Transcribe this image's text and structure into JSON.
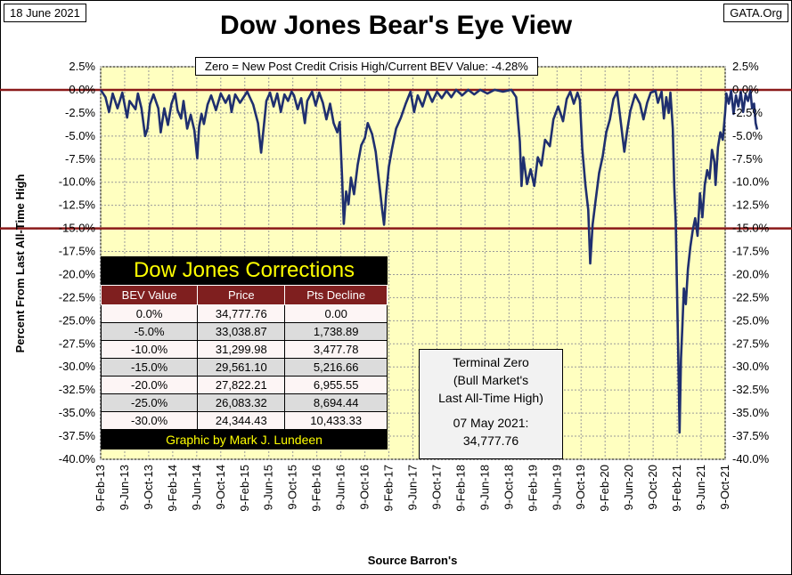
{
  "header": {
    "date": "18 June 2021",
    "site": "GATA.Org",
    "title": "Dow Jones Bear's Eye View"
  },
  "annotation": {
    "zero_note": "Zero = New Post Credit Crisis High/Current  BEV Value:  -4.28%"
  },
  "chart_data": {
    "type": "line",
    "title": "Dow Jones Bear's Eye View",
    "ylabel": "Percent From Last All-Time High",
    "xlabel": "Source Barron's",
    "ylim": [
      -40,
      2.5
    ],
    "y_ticks": [
      "2.5%",
      "0.0%",
      "-2.5%",
      "-5.0%",
      "-7.5%",
      "-10.0%",
      "-12.5%",
      "-15.0%",
      "-17.5%",
      "-20.0%",
      "-22.5%",
      "-25.0%",
      "-27.5%",
      "-30.0%",
      "-32.5%",
      "-35.0%",
      "-37.5%",
      "-40.0%"
    ],
    "x_ticks": [
      "9-Feb-13",
      "9-Jun-13",
      "9-Oct-13",
      "9-Feb-14",
      "9-Jun-14",
      "9-Oct-14",
      "9-Feb-15",
      "9-Jun-15",
      "9-Oct-15",
      "9-Feb-16",
      "9-Jun-16",
      "9-Oct-16",
      "9-Feb-17",
      "9-Jun-17",
      "9-Oct-17",
      "9-Feb-18",
      "9-Jun-18",
      "9-Oct-18",
      "9-Feb-19",
      "9-Jun-19",
      "9-Oct-19",
      "9-Feb-20",
      "9-Jun-20",
      "9-Oct-20",
      "9-Feb-21",
      "9-Jun-21",
      "9-Oct-21"
    ],
    "reference_lines": [
      0,
      -15
    ],
    "series": [
      {
        "name": "BEV",
        "points": [
          [
            0,
            0
          ],
          [
            0.2,
            -0.8
          ],
          [
            0.35,
            -2.4
          ],
          [
            0.5,
            -0.4
          ],
          [
            0.7,
            -2
          ],
          [
            0.9,
            -0.3
          ],
          [
            1.1,
            -3
          ],
          [
            1.2,
            -1.2
          ],
          [
            1.45,
            -2.1
          ],
          [
            1.55,
            -0.4
          ],
          [
            1.7,
            -2
          ],
          [
            1.85,
            -5
          ],
          [
            1.95,
            -4.2
          ],
          [
            2.05,
            -1.6
          ],
          [
            2.2,
            -0.5
          ],
          [
            2.4,
            -2
          ],
          [
            2.5,
            -4.6
          ],
          [
            2.65,
            -2
          ],
          [
            2.8,
            -3.8
          ],
          [
            2.95,
            -1.5
          ],
          [
            3.1,
            -0.4
          ],
          [
            3.2,
            -2.2
          ],
          [
            3.35,
            -3.1
          ],
          [
            3.45,
            -1.2
          ],
          [
            3.6,
            -4.2
          ],
          [
            3.75,
            -2.7
          ],
          [
            3.9,
            -4.4
          ],
          [
            4.02,
            -7.4
          ],
          [
            4.1,
            -4
          ],
          [
            4.2,
            -2.6
          ],
          [
            4.3,
            -3.7
          ],
          [
            4.45,
            -1.6
          ],
          [
            4.6,
            -0.6
          ],
          [
            4.8,
            -2.2
          ],
          [
            5,
            -0.4
          ],
          [
            5.2,
            -1.4
          ],
          [
            5.35,
            -0.6
          ],
          [
            5.45,
            -2.4
          ],
          [
            5.6,
            -0.5
          ],
          [
            5.8,
            -1.4
          ],
          [
            6.1,
            -0.2
          ],
          [
            6.35,
            -1.6
          ],
          [
            6.55,
            -3.6
          ],
          [
            6.68,
            -6.8
          ],
          [
            6.8,
            -3.8
          ],
          [
            6.9,
            -1.2
          ],
          [
            7.05,
            -0.3
          ],
          [
            7.2,
            -1.8
          ],
          [
            7.35,
            -0.4
          ],
          [
            7.5,
            -2.4
          ],
          [
            7.65,
            -0.5
          ],
          [
            7.8,
            -1.2
          ],
          [
            7.95,
            -0.2
          ],
          [
            8.05,
            -0.6
          ],
          [
            8.2,
            -2.1
          ],
          [
            8.35,
            -0.9
          ],
          [
            8.5,
            -3.6
          ],
          [
            8.6,
            -1.2
          ],
          [
            8.8,
            -0.2
          ],
          [
            8.95,
            -1.7
          ],
          [
            9.1,
            -0.3
          ],
          [
            9.25,
            -1.4
          ],
          [
            9.4,
            -3.2
          ],
          [
            9.55,
            -1.5
          ],
          [
            9.7,
            -3.6
          ],
          [
            9.85,
            -4.6
          ],
          [
            9.95,
            -3.5
          ],
          [
            10.05,
            -9.5
          ],
          [
            10.12,
            -14.5
          ],
          [
            10.22,
            -11
          ],
          [
            10.32,
            -12.4
          ],
          [
            10.42,
            -9.5
          ],
          [
            10.55,
            -11.3
          ],
          [
            10.7,
            -8.1
          ],
          [
            10.85,
            -6
          ],
          [
            11,
            -5.2
          ],
          [
            11.12,
            -3.6
          ],
          [
            11.3,
            -4.8
          ],
          [
            11.45,
            -6.7
          ],
          [
            11.6,
            -10.2
          ],
          [
            11.72,
            -13
          ],
          [
            11.8,
            -14.6
          ],
          [
            11.88,
            -11.5
          ],
          [
            12,
            -8.3
          ],
          [
            12.12,
            -6.5
          ],
          [
            12.3,
            -4.2
          ],
          [
            12.5,
            -3
          ],
          [
            12.7,
            -1.5
          ],
          [
            12.9,
            -0.2
          ],
          [
            13.05,
            -2.4
          ],
          [
            13.2,
            -0.6
          ],
          [
            13.4,
            -1.8
          ],
          [
            13.6,
            -0.1
          ],
          [
            13.8,
            -1.3
          ],
          [
            14,
            -0.2
          ],
          [
            14.2,
            -0.9
          ],
          [
            14.4,
            -0.1
          ],
          [
            14.6,
            -0.8
          ],
          [
            14.8,
            0
          ],
          [
            15.05,
            -0.6
          ],
          [
            15.3,
            0
          ],
          [
            15.55,
            -0.5
          ],
          [
            15.8,
            0
          ],
          [
            16.1,
            -0.4
          ],
          [
            16.4,
            0
          ],
          [
            16.75,
            -0.2
          ],
          [
            17.1,
            0
          ],
          [
            17.3,
            -0.8
          ],
          [
            17.45,
            -5.6
          ],
          [
            17.52,
            -10.4
          ],
          [
            17.6,
            -7.3
          ],
          [
            17.75,
            -10.2
          ],
          [
            17.9,
            -8.6
          ],
          [
            18.05,
            -10.4
          ],
          [
            18.2,
            -7.3
          ],
          [
            18.35,
            -8.2
          ],
          [
            18.5,
            -5.4
          ],
          [
            18.7,
            -6.1
          ],
          [
            18.85,
            -3.2
          ],
          [
            19.05,
            -1.8
          ],
          [
            19.25,
            -3.4
          ],
          [
            19.4,
            -1
          ],
          [
            19.55,
            -0.2
          ],
          [
            19.7,
            -1.5
          ],
          [
            19.85,
            -0.3
          ],
          [
            19.95,
            -1.1
          ],
          [
            20.05,
            -6.4
          ],
          [
            20.18,
            -10.3
          ],
          [
            20.3,
            -13
          ],
          [
            20.38,
            -18.8
          ],
          [
            20.48,
            -14.6
          ],
          [
            20.6,
            -12.1
          ],
          [
            20.75,
            -9
          ],
          [
            20.9,
            -7.2
          ],
          [
            21.05,
            -4.6
          ],
          [
            21.2,
            -3.2
          ],
          [
            21.35,
            -1
          ],
          [
            21.5,
            -0.2
          ],
          [
            21.65,
            -3.4
          ],
          [
            21.8,
            -6.7
          ],
          [
            21.92,
            -4.4
          ],
          [
            22.05,
            -2.3
          ],
          [
            22.25,
            -0.5
          ],
          [
            22.45,
            -1.5
          ],
          [
            22.6,
            -3.2
          ],
          [
            22.75,
            -1.4
          ],
          [
            22.9,
            -0.3
          ],
          [
            23.1,
            -0.1
          ],
          [
            23.2,
            -1.4
          ],
          [
            23.35,
            -0.2
          ],
          [
            23.45,
            -3.1
          ],
          [
            23.55,
            -0.8
          ],
          [
            23.65,
            -2.5
          ],
          [
            23.72,
            -0.3
          ],
          [
            23.82,
            -4.2
          ],
          [
            23.88,
            -10.4
          ],
          [
            23.94,
            -14.3
          ],
          [
            24.0,
            -22.5
          ],
          [
            24.06,
            -30.5
          ],
          [
            24.1,
            -37.1
          ],
          [
            24.16,
            -29.1
          ],
          [
            24.22,
            -25.5
          ],
          [
            24.28,
            -21.5
          ],
          [
            24.36,
            -23.2
          ],
          [
            24.45,
            -19.4
          ],
          [
            24.55,
            -17
          ],
          [
            24.65,
            -15.2
          ],
          [
            24.75,
            -13.9
          ],
          [
            24.85,
            -15.8
          ],
          [
            24.95,
            -11.2
          ],
          [
            25.05,
            -13.8
          ],
          [
            25.15,
            -10.3
          ],
          [
            25.25,
            -8.7
          ],
          [
            25.35,
            -9.6
          ],
          [
            25.45,
            -6.5
          ],
          [
            25.55,
            -7.8
          ],
          [
            25.6,
            -10.3
          ],
          [
            25.7,
            -6.2
          ],
          [
            25.8,
            -4.6
          ],
          [
            25.9,
            -5.4
          ],
          [
            26.0,
            -2.4
          ],
          [
            26.05,
            -0.4
          ],
          [
            26.15,
            -1.5
          ],
          [
            26.25,
            -0.1
          ],
          [
            26.35,
            -2.6
          ],
          [
            26.45,
            -0.6
          ],
          [
            26.55,
            -1.8
          ],
          [
            26.65,
            -0.2
          ],
          [
            26.75,
            -2.4
          ],
          [
            26.85,
            -0.5
          ],
          [
            26.95,
            -1.2
          ],
          [
            27.05,
            -0.1
          ],
          [
            27.12,
            -2
          ],
          [
            27.2,
            -1.5
          ],
          [
            27.27,
            -3.6
          ],
          [
            27.33,
            -4.3
          ]
        ]
      }
    ]
  },
  "corrections": {
    "title": "Dow Jones Corrections",
    "headers": [
      "BEV Value",
      "Price",
      "Pts Decline"
    ],
    "rows": [
      [
        "0.0%",
        "34,777.76",
        "0.00"
      ],
      [
        "-5.0%",
        "33,038.87",
        "1,738.89"
      ],
      [
        "-10.0%",
        "31,299.98",
        "3,477.78"
      ],
      [
        "-15.0%",
        "29,561.10",
        "5,216.66"
      ],
      [
        "-20.0%",
        "27,822.21",
        "6,955.55"
      ],
      [
        "-25.0%",
        "26,083.32",
        "8,694.44"
      ],
      [
        "-30.0%",
        "24,344.43",
        "10,433.33"
      ]
    ],
    "credit": "Graphic by Mark J. Lundeen"
  },
  "terminal": {
    "line1": "Terminal Zero",
    "line2": "(Bull Market's",
    "line3": "Last All-Time High)",
    "line4": "07 May 2021:",
    "line5": "34,777.76"
  },
  "colors": {
    "plot_bg": "#ffffc0",
    "line": "#1f2f6f",
    "ref_line": "#8b1a1a",
    "table_header": "#7f1f1f",
    "highlight_text": "#ffff00"
  }
}
